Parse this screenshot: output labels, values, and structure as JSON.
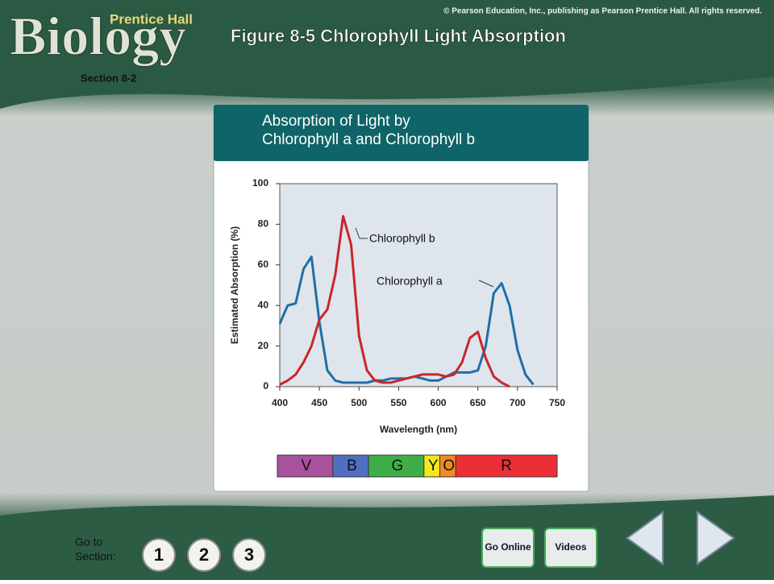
{
  "copyright": "© Pearson Education, Inc., publishing as Pearson Prentice Hall. All rights reserved.",
  "logo": {
    "name": "Biology",
    "publisher": "Prentice Hall"
  },
  "title": "Figure 8-5 Chlorophyll Light Absorption",
  "section": "Section 8-2",
  "chart_data": {
    "type": "line",
    "title": [
      "Absorption of Light by",
      "Chlorophyll a and Chlorophyll b"
    ],
    "xlabel": "Wavelength (nm)",
    "ylabel": "Estimated Absorption (%)",
    "xlim": [
      400,
      750
    ],
    "xticks": [
      400,
      450,
      500,
      550,
      600,
      650,
      700,
      750
    ],
    "ylim": [
      0,
      100
    ],
    "yticks": [
      0,
      20,
      40,
      60,
      80,
      100
    ],
    "x": [
      400,
      410,
      420,
      430,
      440,
      450,
      460,
      470,
      480,
      490,
      500,
      510,
      520,
      530,
      540,
      550,
      560,
      570,
      580,
      590,
      600,
      610,
      620,
      630,
      640,
      650,
      660,
      670,
      680,
      690,
      700,
      710,
      720,
      730,
      740
    ],
    "series": [
      {
        "name": "Chlorophyll a",
        "color": "#1f6fa8",
        "values": [
          31,
          40,
          41,
          58,
          64,
          32,
          8,
          3,
          2,
          2,
          2,
          2,
          3,
          3,
          4,
          4,
          4,
          5,
          4,
          3,
          3,
          5,
          7,
          7,
          7,
          8,
          20,
          46,
          51,
          40,
          18,
          6,
          1,
          null,
          null
        ]
      },
      {
        "name": "Chlorophyll b",
        "color": "#c9262b",
        "values": [
          1,
          3,
          6,
          12,
          20,
          33,
          38,
          55,
          84,
          70,
          25,
          8,
          3,
          2,
          2,
          3,
          4,
          5,
          6,
          6,
          6,
          5,
          6,
          12,
          24,
          27,
          14,
          5,
          2,
          0,
          null,
          null,
          null,
          null,
          null
        ]
      }
    ],
    "spectrum": [
      {
        "label": "V",
        "start": 400,
        "end": 470,
        "color": "#a8519c"
      },
      {
        "label": "B",
        "start": 470,
        "end": 515,
        "color": "#4f6fc0"
      },
      {
        "label": "G",
        "start": 515,
        "end": 585,
        "color": "#3fae49"
      },
      {
        "label": "Y",
        "start": 585,
        "end": 605,
        "color": "#f4e81c"
      },
      {
        "label": "O",
        "start": 605,
        "end": 625,
        "color": "#f08a24"
      },
      {
        "label": "R",
        "start": 625,
        "end": 750,
        "color": "#ec2f37"
      }
    ]
  },
  "footer": {
    "goto": [
      "Go to",
      "Section:"
    ],
    "sections": [
      "1",
      "2",
      "3"
    ],
    "online": "Go Online",
    "videos": "Videos"
  }
}
